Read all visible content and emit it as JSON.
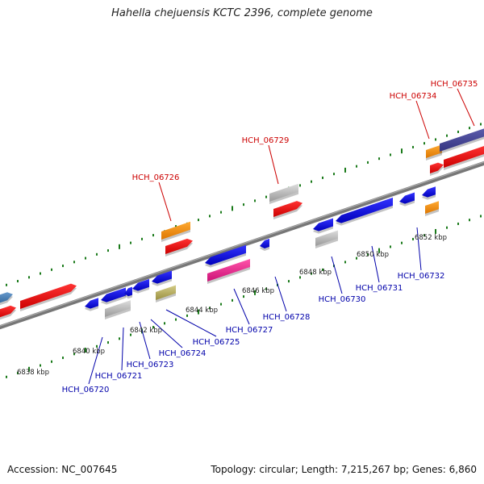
{
  "title": "Hahella chejuensis KCTC 2396, complete genome",
  "footer": {
    "accession": "Accession: NC_007645",
    "summary": "Topology: circular; Length: 7,215,267 bp; Genes: 6,860"
  },
  "colors": {
    "top_label": "#cc0000",
    "bottom_label": "#0000aa",
    "tick": "#1a7a1a",
    "axis": "#808080"
  },
  "kbp_labels": [
    "6838 kbp",
    "6840 kbp",
    "6842 kbp",
    "6844 kbp",
    "6846 kbp",
    "6848 kbp",
    "6850 kbp",
    "6852 kbp"
  ],
  "top_labels": [
    "HCH_06726",
    "HCH_06729",
    "HCH_06734",
    "HCH_06735"
  ],
  "bottom_labels": [
    "HCH_06720",
    "HCH_06721",
    "HCH_06723",
    "HCH_06724",
    "HCH_06725",
    "HCH_06727",
    "HCH_06728",
    "HCH_06730",
    "HCH_06731",
    "HCH_06732"
  ]
}
